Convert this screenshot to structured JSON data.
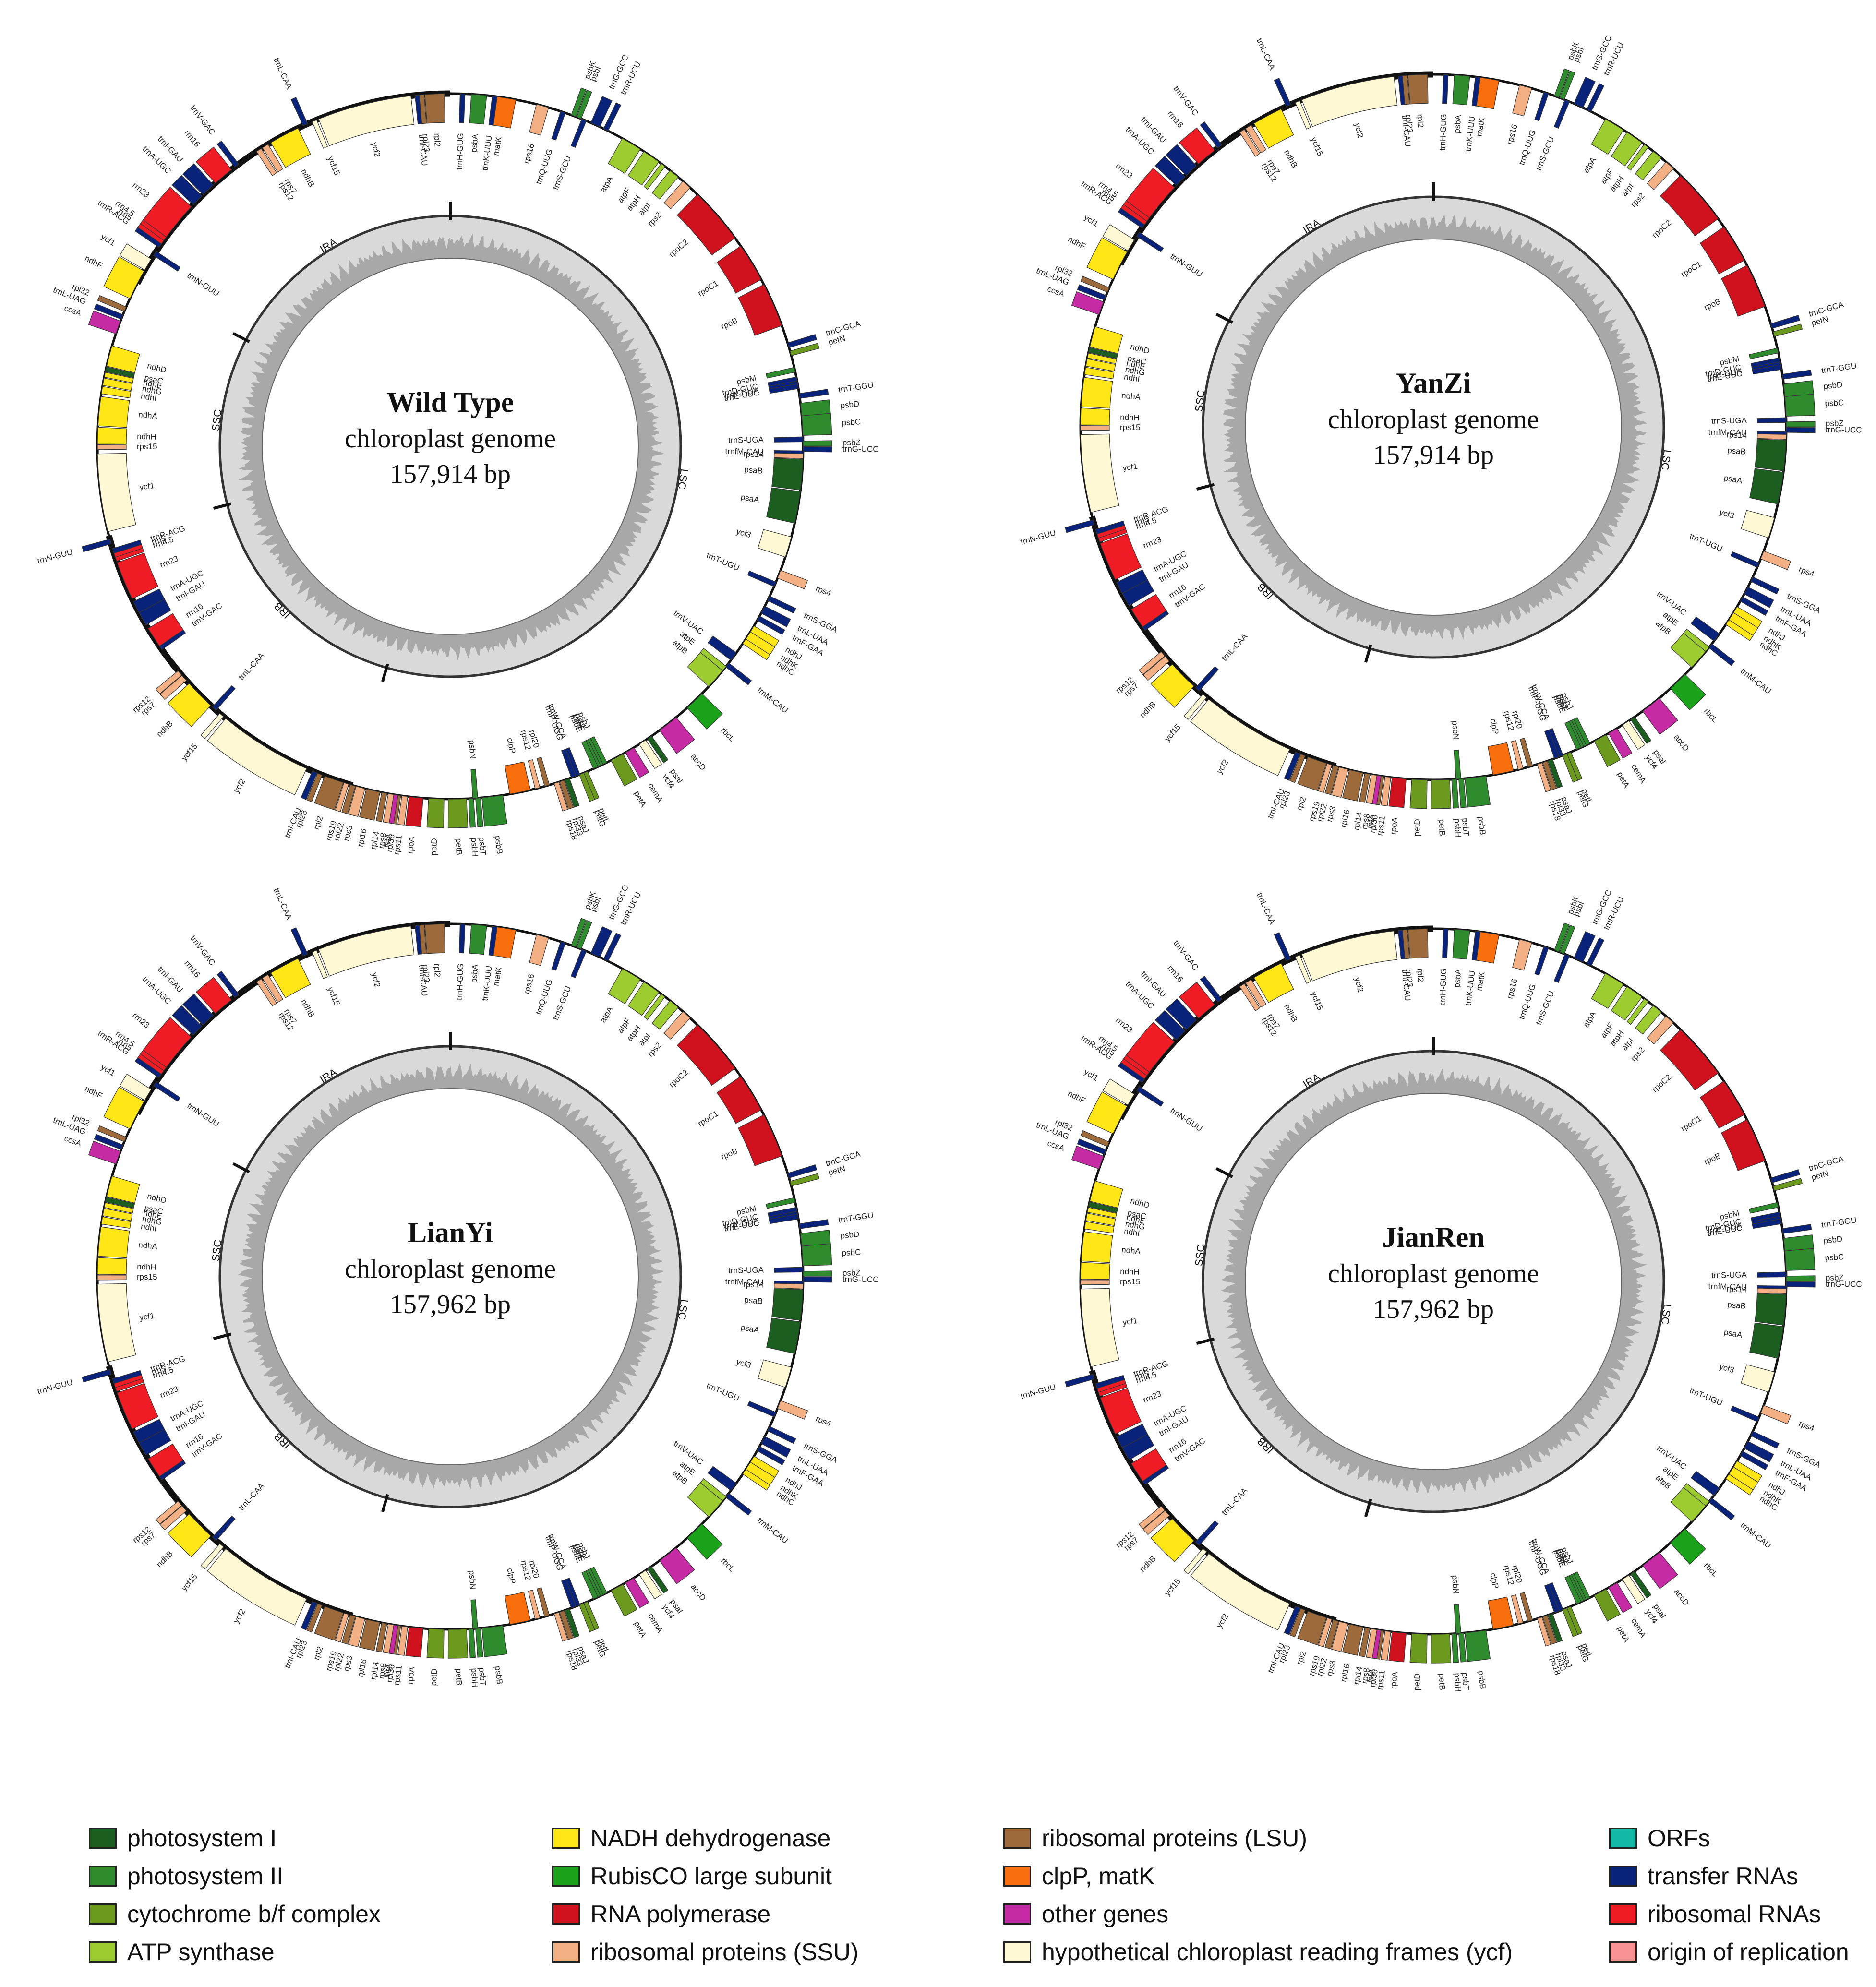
{
  "plots": [
    {
      "name": "Wild Type",
      "label_lines": [
        "chloroplast genome",
        "157,914 bp"
      ]
    },
    {
      "name": "YanZi",
      "label_lines": [
        "chloroplast genome",
        "157,914 bp"
      ]
    },
    {
      "name": "LianYi",
      "label_lines": [
        "chloroplast genome",
        "157,962 bp"
      ]
    },
    {
      "name": "JianRen",
      "label_lines": [
        "chloroplast genome",
        "157,962 bp"
      ]
    }
  ],
  "regions": [
    {
      "name": "LSC",
      "start": 0,
      "end": 86000
    },
    {
      "name": "IRB",
      "start": 86000,
      "end": 112000
    },
    {
      "name": "SSC",
      "start": 112000,
      "end": 130500
    },
    {
      "name": "IRA",
      "start": 130500,
      "end": 157914
    }
  ],
  "genome_length": 157914,
  "categories": {
    "psI": "#1b5e20",
    "psII": "#2e8b2e",
    "cyt": "#6b9a1f",
    "atp": "#9ccc2f",
    "ndh": "#ffe617",
    "rbcL": "#1aa31a",
    "rpo": "#d0121e",
    "rps": "#f2b084",
    "rpl": "#9c6a3b",
    "clp": "#f86d0c",
    "other": "#c72aa5",
    "ycf": "#fff8d5",
    "orf": "#14b8a6",
    "trna": "#0a237a",
    "rrna": "#ef1b25",
    "ori": "#f99393"
  },
  "features": [
    {
      "n": "psbA",
      "p": 1500,
      "l": 1100,
      "c": "psII",
      "s": "in"
    },
    {
      "n": "trnH-GUG",
      "p": 700,
      "l": 80,
      "c": "trna",
      "s": "in"
    },
    {
      "n": "matK",
      "p": 3200,
      "l": 1500,
      "c": "clp",
      "s": "in"
    },
    {
      "n": "trnK-UUU",
      "p": 3000,
      "l": 80,
      "c": "trna",
      "s": "in"
    },
    {
      "n": "rps16",
      "p": 6200,
      "l": 900,
      "c": "rps",
      "s": "in"
    },
    {
      "n": "trnQ-UUG",
      "p": 8000,
      "l": 80,
      "c": "trna",
      "s": "in"
    },
    {
      "n": "psbK",
      "p": 8800,
      "l": 200,
      "c": "psII",
      "s": "out"
    },
    {
      "n": "psbI",
      "p": 9200,
      "l": 150,
      "c": "psII",
      "s": "out"
    },
    {
      "n": "trnS-GCU",
      "p": 9600,
      "l": 80,
      "c": "trna",
      "s": "in"
    },
    {
      "n": "trnG-GCC",
      "p": 10300,
      "l": 700,
      "c": "trna",
      "s": "out"
    },
    {
      "n": "trnR-UCU",
      "p": 11300,
      "l": 80,
      "c": "trna",
      "s": "out"
    },
    {
      "n": "atpA",
      "p": 12800,
      "l": 1500,
      "c": "atp",
      "s": "in"
    },
    {
      "n": "atpF",
      "p": 14600,
      "l": 1300,
      "c": "atp",
      "s": "in"
    },
    {
      "n": "atpH",
      "p": 16100,
      "l": 300,
      "c": "atp",
      "s": "in"
    },
    {
      "n": "atpI",
      "p": 16900,
      "l": 750,
      "c": "atp",
      "s": "in"
    },
    {
      "n": "rps2",
      "p": 18100,
      "l": 700,
      "c": "rps",
      "s": "in"
    },
    {
      "n": "rpoC2",
      "p": 19500,
      "l": 4100,
      "c": "rpo",
      "s": "in"
    },
    {
      "n": "rpoC1",
      "p": 24300,
      "l": 2800,
      "c": "rpo",
      "s": "in"
    },
    {
      "n": "rpoB",
      "p": 27500,
      "l": 3200,
      "c": "rpo",
      "s": "in"
    },
    {
      "n": "trnC-GCA",
      "p": 32000,
      "l": 80,
      "c": "trna",
      "s": "out"
    },
    {
      "n": "petN",
      "p": 32600,
      "l": 90,
      "c": "cyt",
      "s": "out"
    },
    {
      "n": "psbM",
      "p": 33800,
      "l": 110,
      "c": "psII",
      "s": "in"
    },
    {
      "n": "trnD-GUC",
      "p": 34500,
      "l": 80,
      "c": "trna",
      "s": "in"
    },
    {
      "n": "trnY-GUA",
      "p": 34800,
      "l": 80,
      "c": "trna",
      "s": "in"
    },
    {
      "n": "trnE-UUC",
      "p": 35000,
      "l": 80,
      "c": "trna",
      "s": "in"
    },
    {
      "n": "trnT-GGU",
      "p": 35700,
      "l": 80,
      "c": "trna",
      "s": "out"
    },
    {
      "n": "psbD",
      "p": 36400,
      "l": 1000,
      "c": "psII",
      "s": "out"
    },
    {
      "n": "psbC",
      "p": 37300,
      "l": 1400,
      "c": "psII",
      "s": "out"
    },
    {
      "n": "trnS-UGA",
      "p": 38800,
      "l": 90,
      "c": "trna",
      "s": "in"
    },
    {
      "n": "psbZ",
      "p": 39100,
      "l": 200,
      "c": "psII",
      "s": "out"
    },
    {
      "n": "trnG-UCC",
      "p": 39500,
      "l": 100,
      "c": "trna",
      "s": "out"
    },
    {
      "n": "trnfM-CAU",
      "p": 39800,
      "l": 80,
      "c": "trna",
      "s": "in"
    },
    {
      "n": "rps14",
      "p": 40000,
      "l": 300,
      "c": "rps",
      "s": "in"
    },
    {
      "n": "psaB",
      "p": 40400,
      "l": 2200,
      "c": "psI",
      "s": "in"
    },
    {
      "n": "psaA",
      "p": 42700,
      "l": 2300,
      "c": "psI",
      "s": "in"
    },
    {
      "n": "ycf3",
      "p": 46000,
      "l": 1500,
      "c": "ycf",
      "s": "in"
    },
    {
      "n": "rps4",
      "p": 48500,
      "l": 600,
      "c": "rps",
      "s": "out"
    },
    {
      "n": "trnT-UGU",
      "p": 49400,
      "l": 80,
      "c": "trna",
      "s": "in"
    },
    {
      "n": "trnS-GGA",
      "p": 50500,
      "l": 80,
      "c": "trna",
      "s": "out"
    },
    {
      "n": "trnL-UAA",
      "p": 51300,
      "l": 560,
      "c": "trna",
      "s": "out"
    },
    {
      "n": "trnF-GAA",
      "p": 52100,
      "l": 80,
      "c": "trna",
      "s": "out"
    },
    {
      "n": "ndhJ",
      "p": 52900,
      "l": 500,
      "c": "ndh",
      "s": "out"
    },
    {
      "n": "ndhK",
      "p": 53400,
      "l": 700,
      "c": "ndh",
      "s": "out"
    },
    {
      "n": "ndhC",
      "p": 54000,
      "l": 400,
      "c": "ndh",
      "s": "out"
    },
    {
      "n": "trnV-UAC",
      "p": 55200,
      "l": 650,
      "c": "trna",
      "s": "in"
    },
    {
      "n": "trnM-CAU",
      "p": 56100,
      "l": 80,
      "c": "trna",
      "s": "out"
    },
    {
      "n": "atpE",
      "p": 56400,
      "l": 400,
      "c": "atp",
      "s": "in"
    },
    {
      "n": "atpB",
      "p": 56800,
      "l": 1500,
      "c": "atp",
      "s": "in"
    },
    {
      "n": "rbcL",
      "p": 59000,
      "l": 1450,
      "c": "rbcL",
      "s": "out"
    },
    {
      "n": "accD",
      "p": 61500,
      "l": 1500,
      "c": "other",
      "s": "out"
    },
    {
      "n": "psaI",
      "p": 63700,
      "l": 110,
      "c": "psI",
      "s": "out"
    },
    {
      "n": "ycf4",
      "p": 64200,
      "l": 550,
      "c": "ycf",
      "s": "out"
    },
    {
      "n": "cemA",
      "p": 65200,
      "l": 700,
      "c": "other",
      "s": "out"
    },
    {
      "n": "petA",
      "p": 66100,
      "l": 960,
      "c": "cyt",
      "s": "out"
    },
    {
      "n": "psbJ",
      "p": 67400,
      "l": 120,
      "c": "psII",
      "s": "in"
    },
    {
      "n": "psbL",
      "p": 67700,
      "l": 120,
      "c": "psII",
      "s": "in"
    },
    {
      "n": "psbF",
      "p": 67900,
      "l": 120,
      "c": "psII",
      "s": "in"
    },
    {
      "n": "psbE",
      "p": 68100,
      "l": 250,
      "c": "psII",
      "s": "in"
    },
    {
      "n": "petL",
      "p": 68900,
      "l": 100,
      "c": "cyt",
      "s": "out"
    },
    {
      "n": "petG",
      "p": 69200,
      "l": 100,
      "c": "cyt",
      "s": "out"
    },
    {
      "n": "trnW-CCA",
      "p": 69500,
      "l": 80,
      "c": "trna",
      "s": "in"
    },
    {
      "n": "trnP-UGG",
      "p": 69800,
      "l": 80,
      "c": "trna",
      "s": "in"
    },
    {
      "n": "psaJ",
      "p": 70300,
      "l": 130,
      "c": "psI",
      "s": "out"
    },
    {
      "n": "rpl33",
      "p": 70700,
      "l": 200,
      "c": "rpl",
      "s": "out"
    },
    {
      "n": "rps18",
      "p": 71100,
      "l": 300,
      "c": "rps",
      "s": "out"
    },
    {
      "n": "rpl20",
      "p": 71800,
      "l": 350,
      "c": "rpl",
      "s": "in"
    },
    {
      "n": "rps12",
      "p": 72500,
      "l": 300,
      "c": "rps",
      "s": "in"
    },
    {
      "n": "clpP",
      "p": 73200,
      "l": 1500,
      "c": "clp",
      "s": "in"
    },
    {
      "n": "psbB",
      "p": 75200,
      "l": 1500,
      "c": "psII",
      "s": "out"
    },
    {
      "n": "psbT",
      "p": 76800,
      "l": 100,
      "c": "psII",
      "s": "out"
    },
    {
      "n": "psbN",
      "p": 77000,
      "l": 130,
      "c": "psII",
      "s": "in"
    },
    {
      "n": "psbH",
      "p": 77300,
      "l": 220,
      "c": "psII",
      "s": "out"
    },
    {
      "n": "petB",
      "p": 77800,
      "l": 1300,
      "c": "cyt",
      "s": "out"
    },
    {
      "n": "petD",
      "p": 79400,
      "l": 1100,
      "c": "cyt",
      "s": "out"
    },
    {
      "n": "rpoA",
      "p": 80900,
      "l": 1000,
      "c": "rpo",
      "s": "out"
    },
    {
      "n": "rps11",
      "p": 82000,
      "l": 420,
      "c": "rps",
      "s": "out"
    },
    {
      "n": "rpl36",
      "p": 82500,
      "l": 110,
      "c": "rpl",
      "s": "out"
    },
    {
      "n": "infA",
      "p": 82700,
      "l": 230,
      "c": "other",
      "s": "out"
    },
    {
      "n": "rps8",
      "p": 83000,
      "l": 400,
      "c": "rps",
      "s": "out"
    },
    {
      "n": "rpl14",
      "p": 83500,
      "l": 370,
      "c": "rpl",
      "s": "out"
    },
    {
      "n": "rpl16",
      "p": 84000,
      "l": 1000,
      "c": "rpl",
      "s": "out"
    },
    {
      "n": "rps3",
      "p": 85100,
      "l": 650,
      "c": "rps",
      "s": "out"
    },
    {
      "n": "rpl22",
      "p": 85800,
      "l": 400,
      "c": "rpl",
      "s": "out"
    },
    {
      "n": "rps19",
      "p": 86300,
      "l": 280,
      "c": "rps",
      "s": "out"
    },
    {
      "n": "rpl2",
      "p": 86700,
      "l": 1400,
      "c": "rpl",
      "s": "out"
    },
    {
      "n": "rpl23",
      "p": 88300,
      "l": 280,
      "c": "rpl",
      "s": "out"
    },
    {
      "n": "trnI-CAU",
      "p": 88700,
      "l": 80,
      "c": "trna",
      "s": "out"
    },
    {
      "n": "ycf2",
      "p": 89500,
      "l": 6800,
      "c": "ycf",
      "s": "out"
    },
    {
      "n": "ycf15",
      "p": 96500,
      "l": 250,
      "c": "ycf",
      "s": "out"
    },
    {
      "n": "trnL-CAA",
      "p": 97200,
      "l": 80,
      "c": "trna",
      "s": "in"
    },
    {
      "n": "ndhB",
      "p": 97700,
      "l": 2200,
      "c": "ndh",
      "s": "out"
    },
    {
      "n": "rps7",
      "p": 100200,
      "l": 470,
      "c": "rps",
      "s": "out"
    },
    {
      "n": "rps12",
      "p": 100700,
      "l": 400,
      "c": "rps",
      "s": "out"
    },
    {
      "n": "trnV-GAC",
      "p": 103000,
      "l": 80,
      "c": "trna",
      "s": "in"
    },
    {
      "n": "rrn16",
      "p": 103300,
      "l": 1500,
      "c": "rrna",
      "s": "in"
    },
    {
      "n": "trnI-GAU",
      "p": 105100,
      "l": 1000,
      "c": "trna",
      "s": "in"
    },
    {
      "n": "trnA-UGC",
      "p": 106100,
      "l": 880,
      "c": "trna",
      "s": "in"
    },
    {
      "n": "rrn23",
      "p": 107200,
      "l": 2800,
      "c": "rrna",
      "s": "in"
    },
    {
      "n": "rrn4.5",
      "p": 110100,
      "l": 100,
      "c": "rrna",
      "s": "in"
    },
    {
      "n": "rrn5",
      "p": 110400,
      "l": 120,
      "c": "rrna",
      "s": "in"
    },
    {
      "n": "trnR-ACG",
      "p": 110700,
      "l": 80,
      "c": "trna",
      "s": "in"
    },
    {
      "n": "trnN-GUU",
      "p": 111400,
      "l": 80,
      "c": "trna",
      "s": "out"
    },
    {
      "n": "ycf1",
      "p": 112300,
      "l": 5600,
      "c": "ycf",
      "s": "in"
    },
    {
      "n": "rps15",
      "p": 118200,
      "l": 270,
      "c": "rps",
      "s": "in"
    },
    {
      "n": "ndhH",
      "p": 118600,
      "l": 1200,
      "c": "ndh",
      "s": "in"
    },
    {
      "n": "ndhA",
      "p": 119900,
      "l": 2100,
      "c": "ndh",
      "s": "in"
    },
    {
      "n": "ndhI",
      "p": 122200,
      "l": 520,
      "c": "ndh",
      "s": "in"
    },
    {
      "n": "ndhG",
      "p": 122800,
      "l": 530,
      "c": "ndh",
      "s": "in"
    },
    {
      "n": "ndhE",
      "p": 123400,
      "l": 300,
      "c": "ndh",
      "s": "in"
    },
    {
      "n": "psaC",
      "p": 123800,
      "l": 250,
      "c": "psI",
      "s": "in"
    },
    {
      "n": "ndhD",
      "p": 124200,
      "l": 1500,
      "c": "ndh",
      "s": "in"
    },
    {
      "n": "ccsA",
      "p": 126600,
      "l": 960,
      "c": "other",
      "s": "out"
    },
    {
      "n": "trnL-UAG",
      "p": 127700,
      "l": 80,
      "c": "trna",
      "s": "out"
    },
    {
      "n": "rpl32",
      "p": 128300,
      "l": 170,
      "c": "rpl",
      "s": "out"
    },
    {
      "n": "ndhF",
      "p": 129300,
      "l": 2200,
      "c": "ndh",
      "s": "out"
    },
    {
      "n": "ycf1",
      "p": 131600,
      "l": 900,
      "c": "ycf",
      "s": "out"
    },
    {
      "n": "trnN-GUU",
      "p": 132800,
      "l": 80,
      "c": "trna",
      "s": "in"
    },
    {
      "n": "trnR-ACG",
      "p": 133500,
      "l": 80,
      "c": "trna",
      "s": "out"
    },
    {
      "n": "rrn5",
      "p": 133800,
      "l": 120,
      "c": "rrna",
      "s": "out"
    },
    {
      "n": "rrn4.5",
      "p": 134100,
      "l": 100,
      "c": "rrna",
      "s": "out"
    },
    {
      "n": "rrn23",
      "p": 134400,
      "l": 2800,
      "c": "rrna",
      "s": "out"
    },
    {
      "n": "trnA-UGC",
      "p": 137400,
      "l": 880,
      "c": "trna",
      "s": "out"
    },
    {
      "n": "trnI-GAU",
      "p": 138400,
      "l": 1000,
      "c": "trna",
      "s": "out"
    },
    {
      "n": "rrn16",
      "p": 139600,
      "l": 1500,
      "c": "rrna",
      "s": "out"
    },
    {
      "n": "trnV-GAC",
      "p": 141400,
      "l": 80,
      "c": "trna",
      "s": "out"
    },
    {
      "n": "rps12",
      "p": 143300,
      "l": 400,
      "c": "rps",
      "s": "in"
    },
    {
      "n": "rps7",
      "p": 143800,
      "l": 470,
      "c": "rps",
      "s": "in"
    },
    {
      "n": "ndhB",
      "p": 144500,
      "l": 2200,
      "c": "ndh",
      "s": "in"
    },
    {
      "n": "trnL-CAA",
      "p": 147100,
      "l": 80,
      "c": "trna",
      "s": "out"
    },
    {
      "n": "ycf15",
      "p": 147800,
      "l": 250,
      "c": "ycf",
      "s": "in"
    },
    {
      "n": "ycf2",
      "p": 148300,
      "l": 6800,
      "c": "ycf",
      "s": "in"
    },
    {
      "n": "trnI-CAU",
      "p": 155400,
      "l": 80,
      "c": "trna",
      "s": "in"
    },
    {
      "n": "rpl23",
      "p": 155700,
      "l": 280,
      "c": "rpl",
      "s": "in"
    },
    {
      "n": "rpl2",
      "p": 156100,
      "l": 1400,
      "c": "rpl",
      "s": "in"
    }
  ],
  "legend": [
    {
      "label": "photosystem I",
      "color": "#1b5e20"
    },
    {
      "label": "photosystem II",
      "color": "#2e8b2e"
    },
    {
      "label": "cytochrome b/f complex",
      "color": "#6b9a1f"
    },
    {
      "label": "ATP synthase",
      "color": "#9ccc2f"
    },
    {
      "label": "NADH dehydrogenase",
      "color": "#ffe617"
    },
    {
      "label": "RubisCO large subunit",
      "color": "#1aa31a"
    },
    {
      "label": "RNA polymerase",
      "color": "#d0121e"
    },
    {
      "label": "ribosomal proteins (SSU)",
      "color": "#f2b084"
    },
    {
      "label": "ribosomal proteins (LSU)",
      "color": "#9c6a3b"
    },
    {
      "label": "clpP, matK",
      "color": "#f86d0c"
    },
    {
      "label": "other genes",
      "color": "#c72aa5"
    },
    {
      "label": "hypothetical chloroplast reading frames (ycf)",
      "color": "#fff8d5"
    },
    {
      "label": "ORFs",
      "color": "#14b8a6"
    },
    {
      "label": "transfer RNAs",
      "color": "#0a237a"
    },
    {
      "label": "ribosomal RNAs",
      "color": "#ef1b25"
    },
    {
      "label": "origin of replication",
      "color": "#f99393"
    }
  ]
}
